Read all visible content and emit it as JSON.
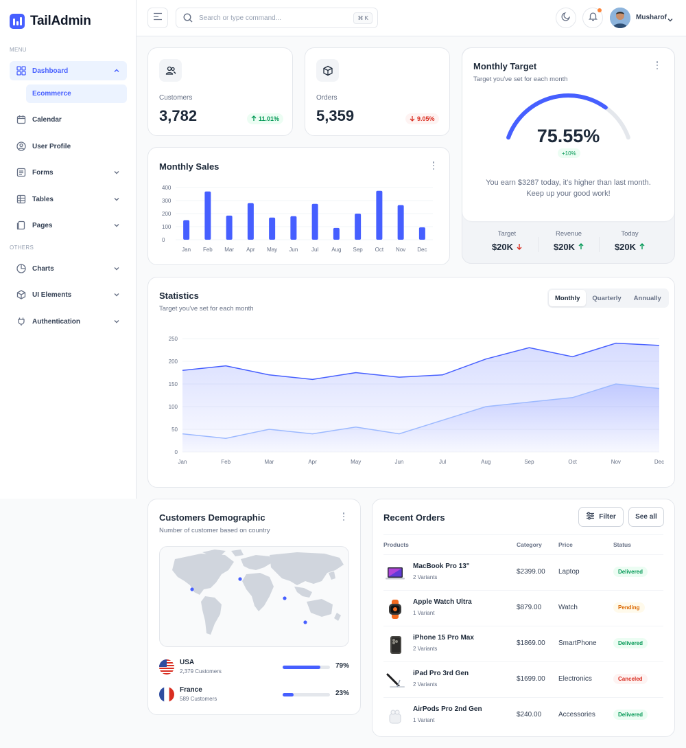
{
  "brand": {
    "name": "TailAdmin"
  },
  "sidebar": {
    "menu_label": "MENU",
    "others_label": "OTHERS",
    "items": [
      {
        "label": "Dashboard"
      },
      {
        "label": "Calendar"
      },
      {
        "label": "User Profile"
      },
      {
        "label": "Forms"
      },
      {
        "label": "Tables"
      },
      {
        "label": "Pages"
      },
      {
        "label": "Charts"
      },
      {
        "label": "UI Elements"
      },
      {
        "label": "Authentication"
      }
    ],
    "sub_item": "Ecommerce"
  },
  "header": {
    "search_placeholder": "Search or type command...",
    "shortcut": "⌘ K",
    "user_name": "Musharof"
  },
  "metrics": [
    {
      "label": "Customers",
      "value": "3,782",
      "change": "11.01%",
      "direction": "up",
      "icon": "users-icon"
    },
    {
      "label": "Orders",
      "value": "5,359",
      "change": "9.05%",
      "direction": "down",
      "icon": "box-icon"
    }
  ],
  "monthly_target": {
    "title": "Monthly Target",
    "subtitle": "Target you've set for each month",
    "percent": "75.55%",
    "progress": 0.7555,
    "badge": "+10%",
    "message": "You earn $3287 today, it's higher than last month. Keep up your good work!",
    "stats": [
      {
        "label": "Target",
        "value": "$20K",
        "direction": "down"
      },
      {
        "label": "Revenue",
        "value": "$20K",
        "direction": "up"
      },
      {
        "label": "Today",
        "value": "$20K",
        "direction": "up"
      }
    ]
  },
  "statistics": {
    "title": "Statistics",
    "subtitle": "Target you've set for each month",
    "tabs": [
      "Monthly",
      "Quarterly",
      "Annually"
    ],
    "active_tab": "Monthly"
  },
  "demographic": {
    "title": "Customers Demographic",
    "subtitle": "Number of customer based on country",
    "countries": [
      {
        "name": "USA",
        "customers": "2,379 Customers",
        "percent": "79%",
        "value": 0.79
      },
      {
        "name": "France",
        "customers": "589 Customers",
        "percent": "23%",
        "value": 0.23
      }
    ]
  },
  "orders": {
    "title": "Recent Orders",
    "filter_label": "Filter",
    "see_all_label": "See all",
    "columns": [
      "Products",
      "Category",
      "Price",
      "Status"
    ],
    "rows": [
      {
        "name": "MacBook Pro 13\"",
        "variants": "2 Variants",
        "price": "$2399.00",
        "category": "Laptop",
        "status": "Delivered"
      },
      {
        "name": "Apple Watch Ultra",
        "variants": "1 Variant",
        "price": "$879.00",
        "category": "Watch",
        "status": "Pending"
      },
      {
        "name": "iPhone 15 Pro Max",
        "variants": "2 Variants",
        "price": "$1869.00",
        "category": "SmartPhone",
        "status": "Delivered"
      },
      {
        "name": "iPad Pro 3rd Gen",
        "variants": "2 Variants",
        "price": "$1699.00",
        "category": "Electronics",
        "status": "Canceled"
      },
      {
        "name": "AirPods Pro 2nd Gen",
        "variants": "1 Variant",
        "price": "$240.00",
        "category": "Accessories",
        "status": "Delivered"
      }
    ]
  },
  "colors": {
    "accent": "#465fff",
    "accent_light": "#9cb9ff",
    "success": "#039855",
    "danger": "#d92d20",
    "warning": "#dc6803"
  },
  "chart_data": [
    {
      "type": "bar",
      "title": "Monthly Sales",
      "categories": [
        "Jan",
        "Feb",
        "Mar",
        "Apr",
        "May",
        "Jun",
        "Jul",
        "Aug",
        "Sep",
        "Oct",
        "Nov",
        "Dec"
      ],
      "values": [
        150,
        370,
        185,
        280,
        170,
        180,
        275,
        90,
        200,
        375,
        265,
        95
      ],
      "ylim": [
        0,
        400
      ],
      "yticks": [
        0,
        100,
        200,
        300,
        400
      ],
      "grid": true
    },
    {
      "type": "area",
      "categories": [
        "Jan",
        "Feb",
        "Mar",
        "Apr",
        "May",
        "Jun",
        "Jul",
        "Aug",
        "Sep",
        "Oct",
        "Nov",
        "Dec"
      ],
      "series": [
        {
          "values": [
            180,
            190,
            170,
            160,
            175,
            165,
            170,
            205,
            230,
            210,
            240,
            235
          ]
        },
        {
          "values": [
            40,
            30,
            50,
            40,
            55,
            40,
            70,
            100,
            110,
            120,
            150,
            140
          ]
        }
      ],
      "ylim": [
        0,
        250
      ],
      "yticks": [
        0,
        50,
        100,
        150,
        200,
        250
      ],
      "grid": true
    }
  ]
}
